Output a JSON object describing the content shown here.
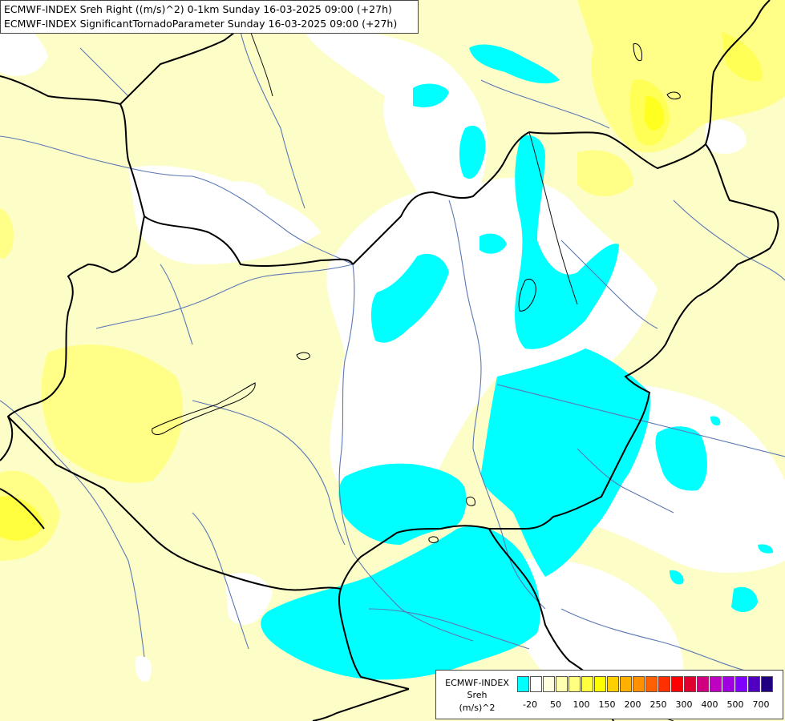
{
  "title": {
    "line1": "ECMWF-INDEX Sreh Right ((m/s)^2) 0-1km Sunday 16-03-2025 09:00 (+27h)",
    "line2": "ECMWF-INDEX SignificantTornadoParameter Sunday 16-03-2025 09:00 (+27h)"
  },
  "legend": {
    "line1": "ECMWF-INDEX",
    "line2": "Sreh",
    "line3": "(m/s)^2",
    "colors": [
      "#00ffff",
      "#ffffff",
      "#ffffe0",
      "#ffffb0",
      "#ffff80",
      "#ffff40",
      "#ffff00",
      "#ffd000",
      "#ffb000",
      "#ff9000",
      "#ff6000",
      "#ff3000",
      "#ff0000",
      "#e00030",
      "#d00080",
      "#c000c0",
      "#a000e0",
      "#8000ff",
      "#5000c0",
      "#200080"
    ],
    "labels": [
      "-20",
      "50",
      "100",
      "150",
      "200",
      "250",
      "300",
      "400",
      "500",
      "700"
    ]
  },
  "palette": {
    "background": "#fdfdc8",
    "cyan": "#00ffff",
    "white": "#ffffff",
    "yellow_light": "#ffff99",
    "yellow": "#ffff00",
    "borders": "#000000",
    "rivers": "#5a78b4"
  }
}
